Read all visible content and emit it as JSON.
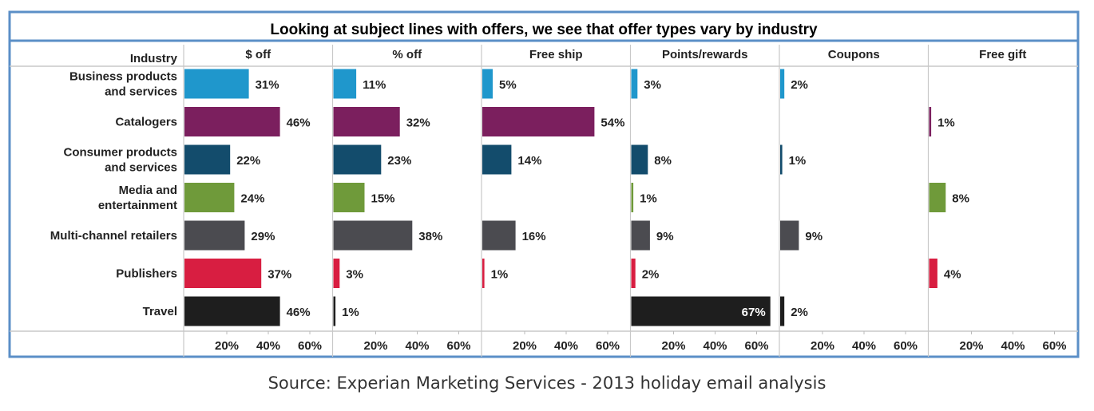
{
  "chart_data": {
    "type": "bar",
    "title": "Looking at subject lines with offers, we see that offer types vary by industry",
    "row_header": "Industry",
    "categories": [
      "Business products\nand services",
      "Catalogers",
      "Consumer products\nand services",
      "Media and\nentertainment",
      "Multi-channel retailers",
      "Publishers",
      "Travel"
    ],
    "colors": [
      "#1f97cc",
      "#7b1f5e",
      "#134c6c",
      "#6f9a3a",
      "#4b4b50",
      "#d81e41",
      "#1e1e1e"
    ],
    "panels": [
      "$ off",
      "% off",
      "Free ship",
      "Points/rewards",
      "Coupons",
      "Free gift"
    ],
    "series": [
      {
        "name": "$ off",
        "values": [
          31,
          46,
          22,
          24,
          29,
          37,
          46
        ]
      },
      {
        "name": "% off",
        "values": [
          11,
          32,
          23,
          15,
          38,
          3,
          1
        ]
      },
      {
        "name": "Free ship",
        "values": [
          5,
          54,
          14,
          null,
          16,
          1,
          null
        ]
      },
      {
        "name": "Points/rewards",
        "values": [
          3,
          null,
          8,
          1,
          9,
          2,
          67
        ]
      },
      {
        "name": "Coupons",
        "values": [
          2,
          null,
          1,
          null,
          9,
          null,
          2
        ]
      },
      {
        "name": "Free gift",
        "values": [
          null,
          1,
          null,
          8,
          null,
          4,
          null
        ]
      }
    ],
    "x_ticks": [
      "20%",
      "40%",
      "60%"
    ],
    "x_tick_values": [
      20,
      40,
      60
    ],
    "xlim": [
      0,
      70
    ],
    "grid": false,
    "legend": "none",
    "border_color": "#5b8fc7"
  },
  "source": "Source: Experian Marketing Services - 2013 holiday email analysis"
}
